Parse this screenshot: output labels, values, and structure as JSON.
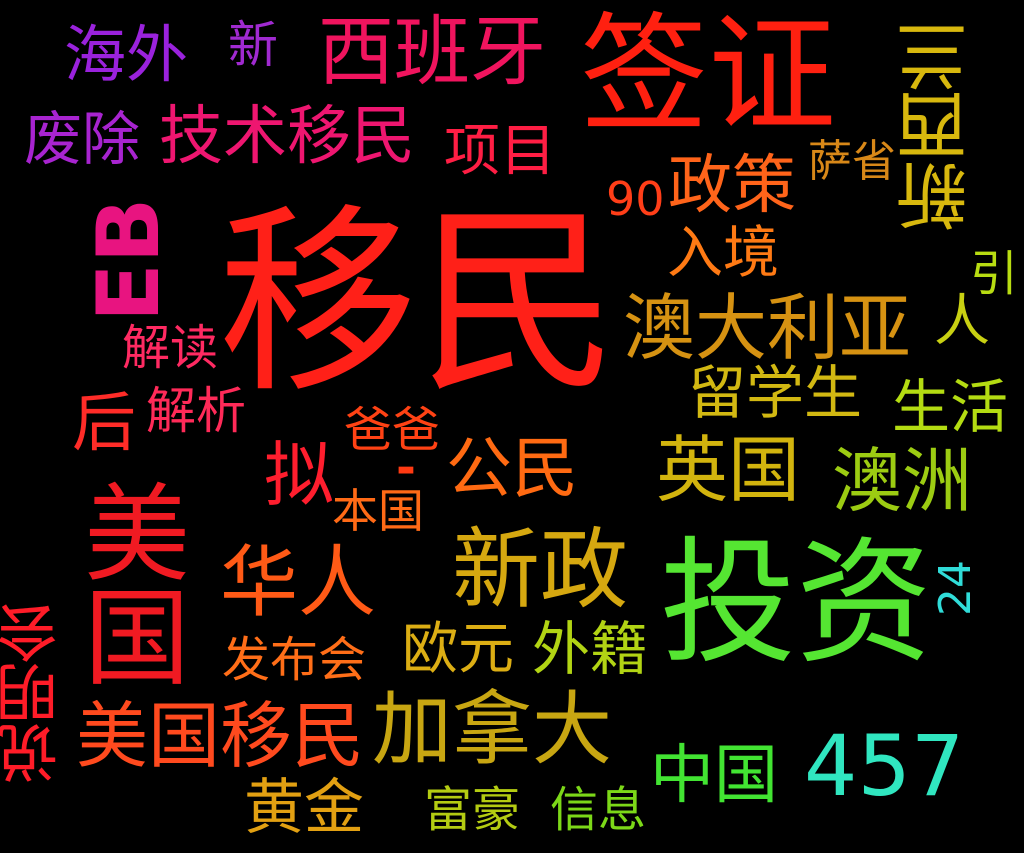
{
  "words": [
    {
      "text": "移民",
      "color": "#ff2018"
    },
    {
      "text": "投资",
      "color": "#55e632"
    },
    {
      "text": "签证",
      "color": "#ff2010"
    },
    {
      "text": "美国",
      "color": "#f01a22"
    },
    {
      "text": "新政",
      "color": "#d6a810"
    },
    {
      "text": "美国移民",
      "color": "#ff4a1e"
    },
    {
      "text": "加拿大",
      "color": "#c8a612"
    },
    {
      "text": "澳大利亚",
      "color": "#d69212"
    },
    {
      "text": "西班牙",
      "color": "#f0145e"
    },
    {
      "text": "技术移民",
      "color": "#ee1670"
    },
    {
      "text": "华人",
      "color": "#ff5a16"
    },
    {
      "text": "英国",
      "color": "#d2b40e"
    },
    {
      "text": "澳洲",
      "color": "#9ccc12"
    },
    {
      "text": "457",
      "color": "#30e6c0"
    },
    {
      "text": "中国",
      "color": "#42e432"
    },
    {
      "text": "海外",
      "color": "#9a22dc"
    },
    {
      "text": "废除",
      "color": "#a824d0"
    },
    {
      "text": "新",
      "color": "#a02ad0"
    },
    {
      "text": "项目",
      "color": "#ff1e44"
    },
    {
      "text": "政策",
      "color": "#ff641a"
    },
    {
      "text": "90",
      "color": "#ff3e18"
    },
    {
      "text": "萨省",
      "color": "#d88818"
    },
    {
      "text": "新西兰",
      "color": "#d8b80e"
    },
    {
      "text": "EB",
      "color": "#e81480"
    },
    {
      "text": "入境",
      "color": "#ff7a14"
    },
    {
      "text": "引",
      "color": "#b8dc12"
    },
    {
      "text": "人",
      "color": "#c8d012"
    },
    {
      "text": "解读",
      "color": "#ff2a62"
    },
    {
      "text": "留学生",
      "color": "#d2b812"
    },
    {
      "text": "生活",
      "color": "#b4dc12"
    },
    {
      "text": "后",
      "color": "#ff2c28"
    },
    {
      "text": "解析",
      "color": "#ff2a58"
    },
    {
      "text": "爸爸",
      "color": "#ff4214"
    },
    {
      "text": "拟",
      "color": "#ff1e2e"
    },
    {
      "text": "-",
      "color": "#ff3a12"
    },
    {
      "text": "公民",
      "color": "#ff6a12"
    },
    {
      "text": "本国",
      "color": "#ff6a16"
    },
    {
      "text": "24",
      "color": "#30dcd8"
    },
    {
      "text": "说明会",
      "color": "#ff1c28"
    },
    {
      "text": "发布会",
      "color": "#ff6e18"
    },
    {
      "text": "欧元",
      "color": "#dcae14"
    },
    {
      "text": "外籍",
      "color": "#b2d414"
    },
    {
      "text": "黄金",
      "color": "#e2a012"
    },
    {
      "text": "富豪",
      "color": "#b4cc12"
    },
    {
      "text": "信息",
      "color": "#7cd818"
    }
  ]
}
